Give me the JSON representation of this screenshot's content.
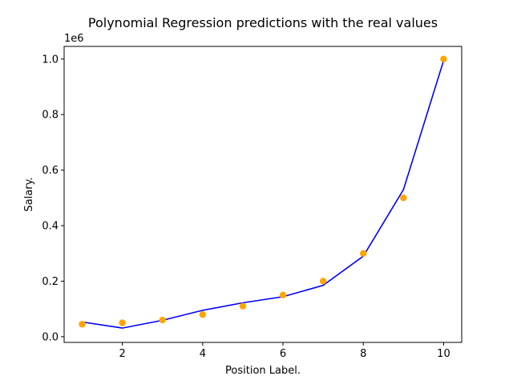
{
  "chart_data": {
    "type": "scatter",
    "title": "Polynomial Regression predictions with the real values",
    "xlabel": "Position Label.",
    "ylabel": "Salary.",
    "y_offset_label": "1e6",
    "y_scale": 1000000,
    "xlim": [
      0.55,
      10.45
    ],
    "ylim": [
      -0.0205,
      1.0455
    ],
    "x_ticks": [
      2,
      4,
      6,
      8,
      10
    ],
    "x_tick_labels": [
      "2",
      "4",
      "6",
      "8",
      "10"
    ],
    "y_ticks": [
      0.0,
      0.2,
      0.4,
      0.6,
      0.8,
      1.0
    ],
    "y_tick_labels": [
      "0.0",
      "0.2",
      "0.4",
      "0.6",
      "0.8",
      "1.0"
    ],
    "grid": false,
    "series": [
      {
        "kind": "scatter",
        "color": "#ffa500",
        "x": [
          1,
          2,
          3,
          4,
          5,
          6,
          7,
          8,
          9,
          10
        ],
        "y": [
          45000,
          50000,
          60000,
          80000,
          110000,
          150000,
          200000,
          300000,
          500000,
          1000000
        ]
      },
      {
        "kind": "line",
        "color": "#0000ff",
        "x": [
          1,
          2,
          3,
          4,
          5,
          6,
          7,
          8,
          9,
          10
        ],
        "y": [
          53000,
          31000,
          59000,
          95000,
          122000,
          144000,
          185000,
          290000,
          530000,
          995000
        ]
      }
    ]
  }
}
